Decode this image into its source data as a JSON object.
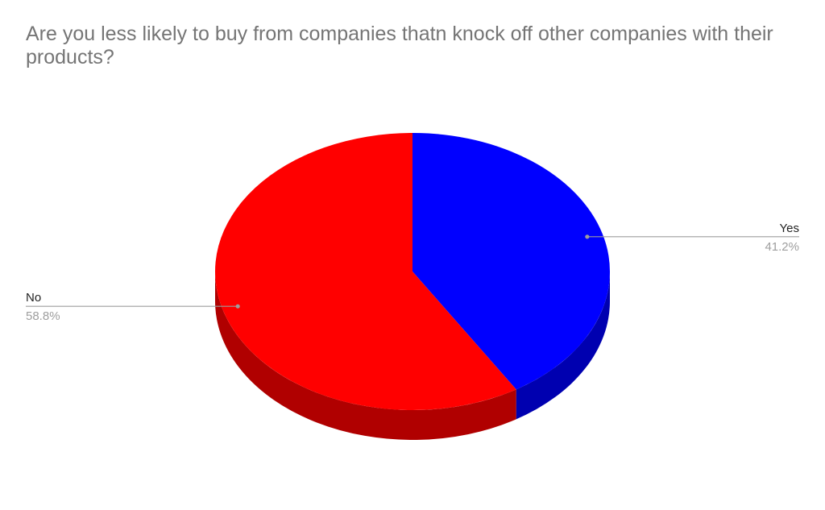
{
  "chart_data": {
    "type": "pie",
    "title": "Are you less likely to buy from companies thatn knock off other companies with their products?",
    "three_d": true,
    "legend": "labeled",
    "slices": [
      {
        "label": "Yes",
        "value": 41.2,
        "value_label": "41.2%",
        "color": "#0000ff",
        "side_color": "#0000b0",
        "label_side": "right"
      },
      {
        "label": "No",
        "value": 58.8,
        "value_label": "58.8%",
        "color": "#ff0000",
        "side_color": "#b00000",
        "label_side": "left"
      }
    ]
  }
}
